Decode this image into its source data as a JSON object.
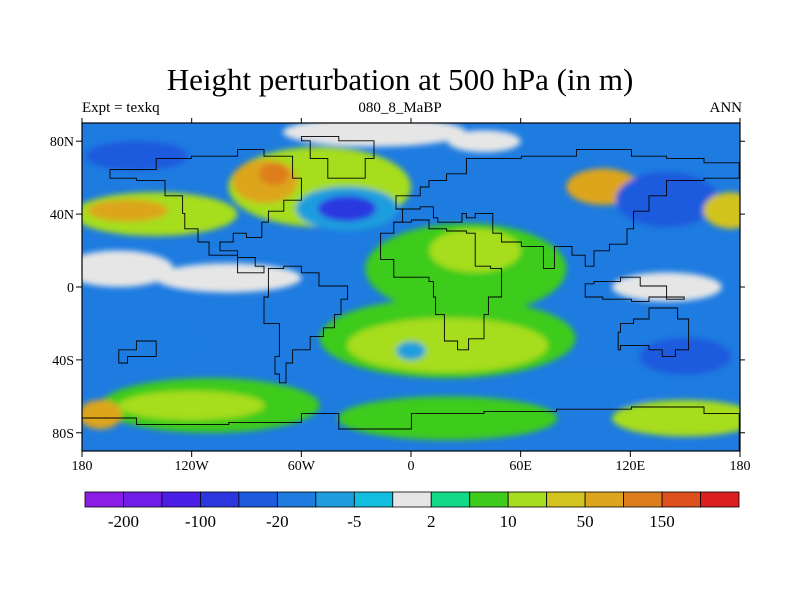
{
  "title": "Height perturbation at 500 hPa (in m)",
  "subtitle_left": "Expt = texkq",
  "subtitle_center": "080_8_MaBP",
  "subtitle_right": "ANN",
  "x_ticks": [
    {
      "lon": -180,
      "label": "180"
    },
    {
      "lon": -120,
      "label": "120W"
    },
    {
      "lon": -60,
      "label": "60W"
    },
    {
      "lon": 0,
      "label": "0"
    },
    {
      "lon": 60,
      "label": "60E"
    },
    {
      "lon": 120,
      "label": "120E"
    },
    {
      "lon": 180,
      "label": "180"
    }
  ],
  "y_ticks": [
    {
      "lat": 80,
      "label": "80N"
    },
    {
      "lat": 40,
      "label": "40N"
    },
    {
      "lat": 0,
      "label": "0"
    },
    {
      "lat": -40,
      "label": "40S"
    },
    {
      "lat": -80,
      "label": "80S"
    }
  ],
  "colorbar": {
    "colors": [
      "#8a1ee6",
      "#6e1ee6",
      "#4b1ee6",
      "#2c37e0",
      "#1e5ade",
      "#1e7be0",
      "#1e9ede",
      "#11bedd",
      "#e6e6e6",
      "#11d987",
      "#3ecb1e",
      "#a6dd1e",
      "#d2c31e",
      "#dda51e",
      "#dd7d1e",
      "#dd501e",
      "#dd1e1e"
    ],
    "labels": [
      {
        "index": 1,
        "text": "-200"
      },
      {
        "index": 3,
        "text": "-100"
      },
      {
        "index": 5,
        "text": "-20"
      },
      {
        "index": 7,
        "text": "-5"
      },
      {
        "index": 9,
        "text": "2"
      },
      {
        "index": 11,
        "text": "10"
      },
      {
        "index": 13,
        "text": "50"
      },
      {
        "index": 15,
        "text": "150"
      }
    ]
  },
  "map_data": {
    "background_level": "-20",
    "blobs": [
      {
        "lon": -140,
        "lat": 40,
        "rx": 45,
        "ry": 12,
        "level": 11
      },
      {
        "lon": -155,
        "lat": 42,
        "rx": 22,
        "ry": 6,
        "level": 13
      },
      {
        "lon": -50,
        "lat": 55,
        "rx": 50,
        "ry": 22,
        "level": 11
      },
      {
        "lon": -80,
        "lat": 58,
        "rx": 18,
        "ry": 12,
        "level": 13
      },
      {
        "lon": -75,
        "lat": 62,
        "rx": 8,
        "ry": 6,
        "level": 14
      },
      {
        "lon": -35,
        "lat": 43,
        "rx": 28,
        "ry": 12,
        "level": 6
      },
      {
        "lon": -35,
        "lat": 43,
        "rx": 16,
        "ry": 7,
        "level": 3
      },
      {
        "lon": 30,
        "lat": 10,
        "rx": 55,
        "ry": 25,
        "level": 10
      },
      {
        "lon": 35,
        "lat": 20,
        "rx": 25,
        "ry": 12,
        "level": 11
      },
      {
        "lon": 105,
        "lat": 55,
        "rx": 20,
        "ry": 10,
        "level": 13
      },
      {
        "lon": 140,
        "lat": 48,
        "rx": 28,
        "ry": 15,
        "level": 4
      },
      {
        "lon": 175,
        "lat": 42,
        "rx": 15,
        "ry": 10,
        "level": 12
      },
      {
        "lon": -100,
        "lat": 5,
        "rx": 40,
        "ry": 8,
        "level": 8
      },
      {
        "lon": -160,
        "lat": 10,
        "rx": 30,
        "ry": 10,
        "level": 8
      },
      {
        "lon": 140,
        "lat": 0,
        "rx": 30,
        "ry": 8,
        "level": 8
      },
      {
        "lon": 20,
        "lat": -28,
        "rx": 70,
        "ry": 22,
        "level": 10
      },
      {
        "lon": 20,
        "lat": -32,
        "rx": 55,
        "ry": 15,
        "level": 11
      },
      {
        "lon": 0,
        "lat": -35,
        "rx": 8,
        "ry": 5,
        "level": 6
      },
      {
        "lon": -150,
        "lat": -30,
        "rx": 30,
        "ry": 10,
        "level": 5
      },
      {
        "lon": 150,
        "lat": -38,
        "rx": 25,
        "ry": 10,
        "level": 4
      },
      {
        "lon": -110,
        "lat": -65,
        "rx": 60,
        "ry": 15,
        "level": 10
      },
      {
        "lon": -120,
        "lat": -65,
        "rx": 40,
        "ry": 8,
        "level": 11
      },
      {
        "lon": 20,
        "lat": -72,
        "rx": 60,
        "ry": 12,
        "level": 10
      },
      {
        "lon": 150,
        "lat": -72,
        "rx": 40,
        "ry": 10,
        "level": 11
      },
      {
        "lon": -170,
        "lat": -70,
        "rx": 12,
        "ry": 8,
        "level": 13
      },
      {
        "lon": 100,
        "lat": -55,
        "rx": 40,
        "ry": 8,
        "level": 5
      },
      {
        "lon": -20,
        "lat": 85,
        "rx": 50,
        "ry": 8,
        "level": 8
      },
      {
        "lon": 40,
        "lat": 80,
        "rx": 20,
        "ry": 6,
        "level": 8
      },
      {
        "lon": -150,
        "lat": 72,
        "rx": 28,
        "ry": 8,
        "level": 4
      }
    ]
  }
}
